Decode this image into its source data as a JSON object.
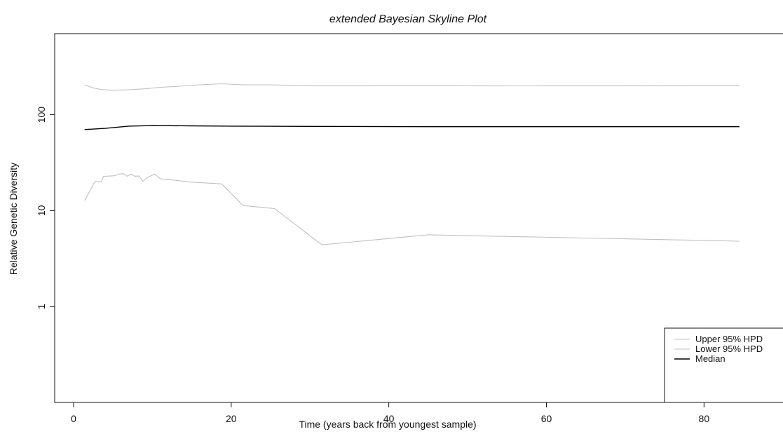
{
  "chart_data": {
    "type": "line",
    "title": "extended Bayesian Skyline Plot",
    "xlabel": "Time (years back from youngest sample)",
    "ylabel": "Relative Genetic Diversity",
    "x_ticks": [
      0,
      20,
      40,
      60,
      80
    ],
    "x_tick_labels": [
      "0",
      "20",
      "40",
      "60",
      "80"
    ],
    "y_ticks": [
      1,
      10,
      100
    ],
    "y_tick_labels": [
      "1",
      "10",
      "100"
    ],
    "y_scale": "log",
    "xlim": [
      -2.4,
      91
    ],
    "ylim": [
      0.1,
      700
    ],
    "grid": false,
    "legend_position": "bottom-right",
    "legend": [
      {
        "label": "Upper 95% HPD",
        "color": "#c0c0c0"
      },
      {
        "label": "Lower 95% HPD",
        "color": "#c0c0c0"
      },
      {
        "label": "Median",
        "color": "#000000"
      }
    ],
    "series": [
      {
        "name": "Upper 95% HPD",
        "color": "#c0c0c0",
        "x": [
          1.4,
          2.5,
          3.5,
          5,
          7,
          9,
          11,
          13,
          16,
          18.8,
          21.5,
          25,
          31,
          45,
          60,
          84.5
        ],
        "y": [
          205,
          190,
          183,
          180,
          182,
          186,
          193,
          197,
          205,
          210,
          205,
          205,
          200,
          201,
          200,
          201
        ]
      },
      {
        "name": "Lower 95% HPD",
        "color": "#c0c0c0",
        "x": [
          1.4,
          2.7,
          3.5,
          3.8,
          4.4,
          5.2,
          5.7,
          6.3,
          6.8,
          7.3,
          7.8,
          8.3,
          8.8,
          9.3,
          9.8,
          10.3,
          11,
          12.2,
          15,
          18.8,
          21.5,
          25.5,
          31.5,
          45,
          84.5
        ],
        "y": [
          12.7,
          20,
          20,
          22.8,
          22.9,
          23.1,
          24,
          24.3,
          22.8,
          24,
          22.8,
          23,
          20.2,
          22,
          23,
          24,
          21.5,
          21,
          19.8,
          19,
          11.3,
          10.5,
          4.4,
          5.6,
          4.8
        ]
      },
      {
        "name": "Median",
        "color": "#000000",
        "x": [
          1.4,
          4,
          7,
          10,
          15,
          20,
          30,
          45,
          60,
          84.5
        ],
        "y": [
          70,
          72,
          76,
          77,
          76.5,
          76,
          75.5,
          75,
          75,
          75
        ]
      }
    ]
  }
}
